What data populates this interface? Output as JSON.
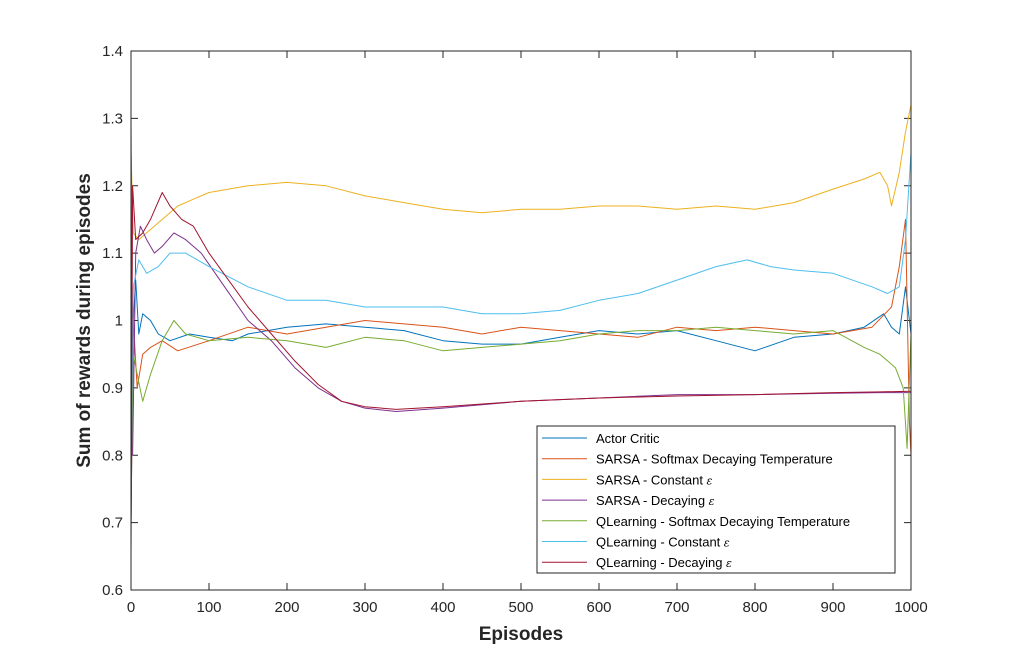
{
  "chart_data": {
    "type": "line",
    "title": "",
    "xlabel": "Episodes",
    "ylabel": "Sum of rewards during episodes",
    "xlim": [
      0,
      1000
    ],
    "ylim": [
      0.6,
      1.4
    ],
    "xticks": [
      "0",
      "100",
      "200",
      "300",
      "400",
      "500",
      "600",
      "700",
      "800",
      "900",
      "1000"
    ],
    "yticks": [
      "0.6",
      "0.7",
      "0.8",
      "0.9",
      "1",
      "1.1",
      "1.2",
      "1.3",
      "1.4"
    ],
    "grid": false,
    "legend_position": "bottom-right",
    "series": [
      {
        "name": "Actor Critic",
        "color": "#0072BD",
        "points": [
          [
            0,
            0.7
          ],
          [
            3,
            1.0
          ],
          [
            6,
            1.06
          ],
          [
            10,
            0.98
          ],
          [
            15,
            1.01
          ],
          [
            25,
            1.0
          ],
          [
            35,
            0.98
          ],
          [
            50,
            0.97
          ],
          [
            75,
            0.98
          ],
          [
            100,
            0.975
          ],
          [
            130,
            0.97
          ],
          [
            150,
            0.98
          ],
          [
            200,
            0.99
          ],
          [
            250,
            0.995
          ],
          [
            300,
            0.99
          ],
          [
            350,
            0.985
          ],
          [
            400,
            0.97
          ],
          [
            450,
            0.965
          ],
          [
            500,
            0.965
          ],
          [
            550,
            0.975
          ],
          [
            600,
            0.985
          ],
          [
            650,
            0.98
          ],
          [
            700,
            0.985
          ],
          [
            750,
            0.97
          ],
          [
            800,
            0.955
          ],
          [
            850,
            0.975
          ],
          [
            900,
            0.98
          ],
          [
            940,
            0.99
          ],
          [
            965,
            1.01
          ],
          [
            975,
            0.99
          ],
          [
            985,
            0.98
          ],
          [
            993,
            1.05
          ],
          [
            1000,
            0.98
          ]
        ]
      },
      {
        "name": "SARSA - Softmax Decaying Temperature",
        "color": "#D95319",
        "points": [
          [
            0,
            0.7
          ],
          [
            3,
            1.0
          ],
          [
            8,
            0.9
          ],
          [
            15,
            0.95
          ],
          [
            25,
            0.96
          ],
          [
            40,
            0.97
          ],
          [
            60,
            0.955
          ],
          [
            100,
            0.97
          ],
          [
            150,
            0.99
          ],
          [
            200,
            0.98
          ],
          [
            250,
            0.99
          ],
          [
            300,
            1.0
          ],
          [
            350,
            0.995
          ],
          [
            400,
            0.99
          ],
          [
            450,
            0.98
          ],
          [
            500,
            0.99
          ],
          [
            550,
            0.985
          ],
          [
            600,
            0.98
          ],
          [
            650,
            0.975
          ],
          [
            700,
            0.99
          ],
          [
            750,
            0.985
          ],
          [
            800,
            0.99
          ],
          [
            850,
            0.985
          ],
          [
            900,
            0.98
          ],
          [
            950,
            0.99
          ],
          [
            975,
            1.02
          ],
          [
            985,
            1.08
          ],
          [
            993,
            1.15
          ],
          [
            998,
            0.85
          ],
          [
            1000,
            0.8
          ]
        ]
      },
      {
        "name": "SARSA - Constant ε",
        "color": "#EDB120",
        "points": [
          [
            0,
            1.25
          ],
          [
            3,
            1.13
          ],
          [
            10,
            1.12
          ],
          [
            20,
            1.13
          ],
          [
            40,
            1.15
          ],
          [
            60,
            1.17
          ],
          [
            80,
            1.18
          ],
          [
            100,
            1.19
          ],
          [
            150,
            1.2
          ],
          [
            200,
            1.205
          ],
          [
            250,
            1.2
          ],
          [
            300,
            1.185
          ],
          [
            350,
            1.175
          ],
          [
            400,
            1.165
          ],
          [
            450,
            1.16
          ],
          [
            500,
            1.165
          ],
          [
            550,
            1.165
          ],
          [
            600,
            1.17
          ],
          [
            650,
            1.17
          ],
          [
            700,
            1.165
          ],
          [
            750,
            1.17
          ],
          [
            800,
            1.165
          ],
          [
            850,
            1.175
          ],
          [
            900,
            1.195
          ],
          [
            940,
            1.21
          ],
          [
            960,
            1.22
          ],
          [
            970,
            1.2
          ],
          [
            975,
            1.17
          ],
          [
            985,
            1.22
          ],
          [
            993,
            1.28
          ],
          [
            1000,
            1.32
          ]
        ]
      },
      {
        "name": "SARSA - Decaying ε",
        "color": "#7E2F8E",
        "points": [
          [
            0,
            1.3
          ],
          [
            2,
            0.8
          ],
          [
            6,
            1.1
          ],
          [
            12,
            1.14
          ],
          [
            20,
            1.12
          ],
          [
            30,
            1.1
          ],
          [
            40,
            1.11
          ],
          [
            55,
            1.13
          ],
          [
            70,
            1.12
          ],
          [
            90,
            1.1
          ],
          [
            120,
            1.05
          ],
          [
            150,
            1.0
          ],
          [
            180,
            0.97
          ],
          [
            210,
            0.93
          ],
          [
            240,
            0.9
          ],
          [
            270,
            0.88
          ],
          [
            300,
            0.87
          ],
          [
            340,
            0.865
          ],
          [
            400,
            0.87
          ],
          [
            500,
            0.88
          ],
          [
            600,
            0.885
          ],
          [
            700,
            0.89
          ],
          [
            800,
            0.89
          ],
          [
            900,
            0.892
          ],
          [
            960,
            0.893
          ],
          [
            1000,
            0.893
          ]
        ]
      },
      {
        "name": "QLearning - Softmax Decaying Temperature",
        "color": "#77AC30",
        "points": [
          [
            0,
            0.75
          ],
          [
            3,
            0.95
          ],
          [
            8,
            0.92
          ],
          [
            15,
            0.88
          ],
          [
            25,
            0.92
          ],
          [
            40,
            0.97
          ],
          [
            55,
            1.0
          ],
          [
            70,
            0.98
          ],
          [
            100,
            0.97
          ],
          [
            150,
            0.975
          ],
          [
            200,
            0.97
          ],
          [
            250,
            0.96
          ],
          [
            300,
            0.975
          ],
          [
            350,
            0.97
          ],
          [
            400,
            0.955
          ],
          [
            450,
            0.96
          ],
          [
            500,
            0.965
          ],
          [
            550,
            0.97
          ],
          [
            600,
            0.98
          ],
          [
            650,
            0.985
          ],
          [
            700,
            0.985
          ],
          [
            750,
            0.99
          ],
          [
            800,
            0.985
          ],
          [
            850,
            0.98
          ],
          [
            900,
            0.985
          ],
          [
            940,
            0.96
          ],
          [
            960,
            0.95
          ],
          [
            970,
            0.94
          ],
          [
            980,
            0.93
          ],
          [
            990,
            0.9
          ],
          [
            995,
            0.81
          ],
          [
            1000,
            0.98
          ]
        ]
      },
      {
        "name": "QLearning - Constant ε",
        "color": "#4DBEEE",
        "points": [
          [
            0,
            0.75
          ],
          [
            3,
            1.05
          ],
          [
            10,
            1.09
          ],
          [
            20,
            1.07
          ],
          [
            35,
            1.08
          ],
          [
            50,
            1.1
          ],
          [
            70,
            1.1
          ],
          [
            100,
            1.08
          ],
          [
            150,
            1.05
          ],
          [
            200,
            1.03
          ],
          [
            250,
            1.03
          ],
          [
            300,
            1.02
          ],
          [
            350,
            1.02
          ],
          [
            400,
            1.02
          ],
          [
            450,
            1.01
          ],
          [
            500,
            1.01
          ],
          [
            550,
            1.015
          ],
          [
            600,
            1.03
          ],
          [
            650,
            1.04
          ],
          [
            700,
            1.06
          ],
          [
            750,
            1.08
          ],
          [
            790,
            1.09
          ],
          [
            820,
            1.08
          ],
          [
            850,
            1.075
          ],
          [
            900,
            1.07
          ],
          [
            950,
            1.05
          ],
          [
            970,
            1.04
          ],
          [
            985,
            1.05
          ],
          [
            993,
            1.12
          ],
          [
            1000,
            1.25
          ]
        ]
      },
      {
        "name": "QLearning - Decaying ε",
        "color": "#A2142F",
        "points": [
          [
            0,
            0.65
          ],
          [
            2,
            1.2
          ],
          [
            6,
            1.12
          ],
          [
            15,
            1.13
          ],
          [
            25,
            1.15
          ],
          [
            40,
            1.19
          ],
          [
            50,
            1.17
          ],
          [
            65,
            1.15
          ],
          [
            80,
            1.14
          ],
          [
            100,
            1.1
          ],
          [
            125,
            1.06
          ],
          [
            150,
            1.02
          ],
          [
            180,
            0.98
          ],
          [
            210,
            0.94
          ],
          [
            240,
            0.905
          ],
          [
            270,
            0.88
          ],
          [
            300,
            0.872
          ],
          [
            340,
            0.868
          ],
          [
            400,
            0.872
          ],
          [
            500,
            0.88
          ],
          [
            600,
            0.885
          ],
          [
            700,
            0.888
          ],
          [
            800,
            0.89
          ],
          [
            900,
            0.893
          ],
          [
            960,
            0.894
          ],
          [
            1000,
            0.895
          ]
        ]
      }
    ],
    "legend": {
      "entries": [
        {
          "text": "Actor Critic",
          "symbol": "",
          "color": "#0072BD"
        },
        {
          "text": "SARSA - Softmax Decaying Temperature",
          "symbol": "",
          "color": "#D95319"
        },
        {
          "text": "SARSA - Constant",
          "symbol": "ε",
          "color": "#EDB120"
        },
        {
          "text": "SARSA - Decaying",
          "symbol": "ε",
          "color": "#7E2F8E"
        },
        {
          "text": "QLearning - Softmax Decaying Temperature",
          "symbol": "",
          "color": "#77AC30"
        },
        {
          "text": "QLearning - Constant",
          "symbol": "ε",
          "color": "#4DBEEE"
        },
        {
          "text": "QLearning - Decaying",
          "symbol": "ε",
          "color": "#A2142F"
        }
      ]
    }
  }
}
